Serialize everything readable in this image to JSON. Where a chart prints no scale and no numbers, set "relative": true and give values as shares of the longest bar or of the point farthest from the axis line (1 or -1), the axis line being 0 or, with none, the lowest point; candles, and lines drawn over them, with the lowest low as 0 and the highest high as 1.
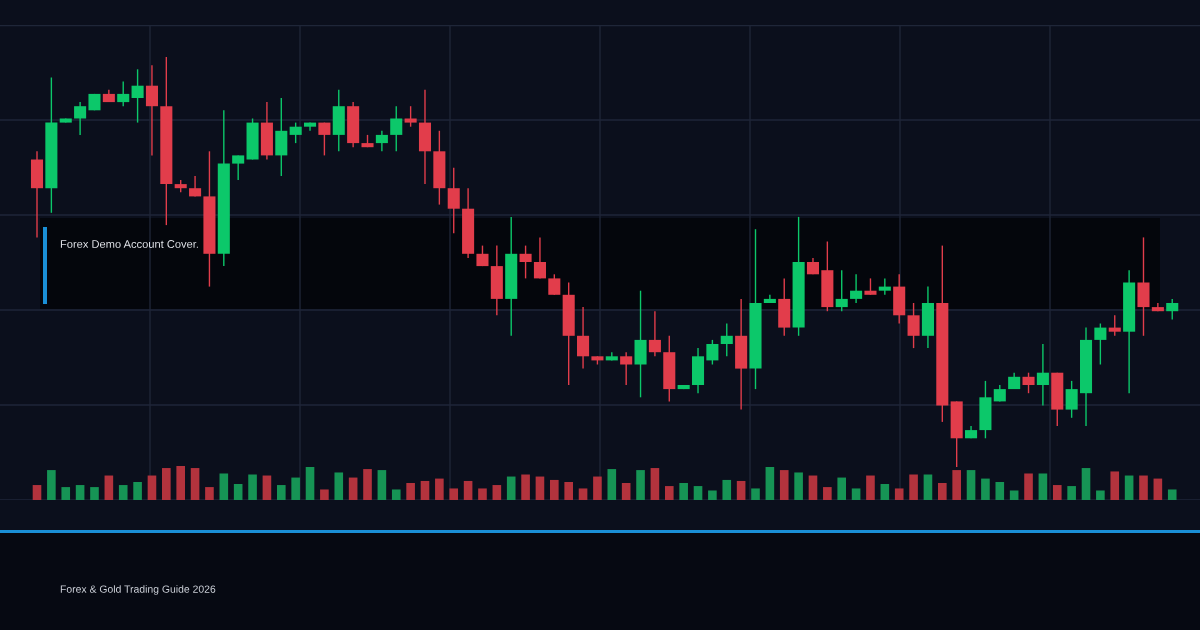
{
  "chart_data": [
    {
      "type": "candlestick",
      "relative": true,
      "grid": true,
      "tick_labels": false,
      "annotations": [
        "Forex Demo Account Cover.",
        "Forex & Gold Trading Guide 2026"
      ],
      "categories": [
        null,
        null,
        null,
        null,
        null,
        null,
        null,
        null,
        null,
        null,
        null,
        null,
        null,
        null,
        null,
        null,
        null,
        null,
        null,
        null,
        null,
        null,
        null,
        null,
        null,
        null,
        null,
        null,
        null,
        null,
        null,
        null,
        null,
        null,
        null,
        null,
        null,
        null,
        null,
        null,
        null,
        null,
        null,
        null,
        null,
        null,
        null,
        null,
        null,
        null,
        null,
        null,
        null,
        null,
        null,
        null,
        null,
        null,
        null,
        null,
        null,
        null,
        null,
        null,
        null,
        null,
        null,
        null,
        null,
        null,
        null,
        null,
        null,
        null,
        null,
        null,
        null,
        null,
        null,
        null
      ],
      "ohlc": [
        [
          0.75,
          0.77,
          0.56,
          0.68
        ],
        [
          0.68,
          0.95,
          0.62,
          0.84
        ],
        [
          0.84,
          0.85,
          0.84,
          0.85
        ],
        [
          0.85,
          0.89,
          0.81,
          0.88
        ],
        [
          0.87,
          0.91,
          0.87,
          0.91
        ],
        [
          0.91,
          0.92,
          0.89,
          0.89
        ],
        [
          0.89,
          0.94,
          0.88,
          0.91
        ],
        [
          0.9,
          0.97,
          0.84,
          0.93
        ],
        [
          0.93,
          0.98,
          0.76,
          0.88
        ],
        [
          0.88,
          1.0,
          0.59,
          0.69
        ],
        [
          0.69,
          0.7,
          0.67,
          0.68
        ],
        [
          0.68,
          0.71,
          0.66,
          0.66
        ],
        [
          0.66,
          0.77,
          0.44,
          0.52
        ],
        [
          0.52,
          0.87,
          0.49,
          0.74
        ],
        [
          0.74,
          0.76,
          0.7,
          0.76
        ],
        [
          0.75,
          0.85,
          0.75,
          0.84
        ],
        [
          0.84,
          0.89,
          0.75,
          0.76
        ],
        [
          0.76,
          0.9,
          0.71,
          0.82
        ],
        [
          0.81,
          0.84,
          0.79,
          0.83
        ],
        [
          0.83,
          0.84,
          0.82,
          0.84
        ],
        [
          0.84,
          0.84,
          0.76,
          0.81
        ],
        [
          0.81,
          0.92,
          0.77,
          0.88
        ],
        [
          0.88,
          0.89,
          0.78,
          0.79
        ],
        [
          0.79,
          0.81,
          0.78,
          0.78
        ],
        [
          0.79,
          0.82,
          0.77,
          0.81
        ],
        [
          0.81,
          0.88,
          0.77,
          0.85
        ],
        [
          0.85,
          0.88,
          0.83,
          0.84
        ],
        [
          0.84,
          0.92,
          0.69,
          0.77
        ],
        [
          0.77,
          0.82,
          0.64,
          0.68
        ],
        [
          0.68,
          0.73,
          0.57,
          0.63
        ],
        [
          0.63,
          0.68,
          0.51,
          0.52
        ],
        [
          0.52,
          0.54,
          0.49,
          0.49
        ],
        [
          0.49,
          0.54,
          0.37,
          0.41
        ],
        [
          0.41,
          0.61,
          0.32,
          0.52
        ],
        [
          0.52,
          0.54,
          0.46,
          0.5
        ],
        [
          0.5,
          0.56,
          0.46,
          0.46
        ],
        [
          0.46,
          0.47,
          0.42,
          0.42
        ],
        [
          0.42,
          0.45,
          0.2,
          0.32
        ],
        [
          0.32,
          0.39,
          0.24,
          0.27
        ],
        [
          0.27,
          0.27,
          0.25,
          0.26
        ],
        [
          0.26,
          0.28,
          0.26,
          0.27
        ],
        [
          0.27,
          0.28,
          0.2,
          0.25
        ],
        [
          0.25,
          0.43,
          0.17,
          0.31
        ],
        [
          0.31,
          0.38,
          0.27,
          0.28
        ],
        [
          0.28,
          0.32,
          0.16,
          0.19
        ],
        [
          0.19,
          0.2,
          0.19,
          0.2
        ],
        [
          0.2,
          0.29,
          0.18,
          0.27
        ],
        [
          0.26,
          0.31,
          0.25,
          0.3
        ],
        [
          0.3,
          0.35,
          0.27,
          0.32
        ],
        [
          0.32,
          0.41,
          0.14,
          0.24
        ],
        [
          0.24,
          0.58,
          0.19,
          0.4
        ],
        [
          0.4,
          0.42,
          0.4,
          0.41
        ],
        [
          0.41,
          0.46,
          0.32,
          0.34
        ],
        [
          0.34,
          0.61,
          0.32,
          0.5
        ],
        [
          0.5,
          0.51,
          0.47,
          0.47
        ],
        [
          0.48,
          0.55,
          0.38,
          0.39
        ],
        [
          0.39,
          0.48,
          0.38,
          0.41
        ],
        [
          0.41,
          0.47,
          0.4,
          0.43
        ],
        [
          0.43,
          0.46,
          0.42,
          0.42
        ],
        [
          0.43,
          0.46,
          0.42,
          0.44
        ],
        [
          0.44,
          0.47,
          0.35,
          0.37
        ],
        [
          0.37,
          0.4,
          0.29,
          0.32
        ],
        [
          0.32,
          0.44,
          0.29,
          0.4
        ],
        [
          0.4,
          0.54,
          0.11,
          0.15
        ],
        [
          0.16,
          0.16,
          0.0,
          0.07
        ],
        [
          0.07,
          0.1,
          0.07,
          0.09
        ],
        [
          0.09,
          0.21,
          0.07,
          0.17
        ],
        [
          0.16,
          0.2,
          0.16,
          0.19
        ],
        [
          0.19,
          0.23,
          0.19,
          0.22
        ],
        [
          0.22,
          0.23,
          0.18,
          0.2
        ],
        [
          0.2,
          0.3,
          0.15,
          0.23
        ],
        [
          0.23,
          0.23,
          0.1,
          0.14
        ],
        [
          0.14,
          0.21,
          0.12,
          0.19
        ],
        [
          0.18,
          0.34,
          0.1,
          0.31
        ],
        [
          0.31,
          0.35,
          0.25,
          0.34
        ],
        [
          0.34,
          0.37,
          0.32,
          0.33
        ],
        [
          0.33,
          0.48,
          0.18,
          0.45
        ],
        [
          0.45,
          0.56,
          0.32,
          0.39
        ],
        [
          0.39,
          0.4,
          0.38,
          0.38
        ],
        [
          0.38,
          0.41,
          0.36,
          0.4
        ]
      ],
      "colors": [
        "#e23d4b",
        "#0cc86a",
        "#0cc86a",
        "#0cc86a",
        "#0cc86a",
        "#e23d4b",
        "#0cc86a",
        "#0cc86a",
        "#e23d4b",
        "#e23d4b",
        "#e23d4b",
        "#e23d4b",
        "#e23d4b",
        "#0cc86a",
        "#0cc86a",
        "#0cc86a",
        "#e23d4b",
        "#0cc86a",
        "#0cc86a",
        "#0cc86a",
        "#e23d4b",
        "#0cc86a",
        "#e23d4b",
        "#e23d4b",
        "#0cc86a",
        "#0cc86a",
        "#e23d4b",
        "#e23d4b",
        "#e23d4b",
        "#e23d4b",
        "#e23d4b",
        "#e23d4b",
        "#e23d4b",
        "#0cc86a",
        "#e23d4b",
        "#e23d4b",
        "#e23d4b",
        "#e23d4b",
        "#e23d4b",
        "#e23d4b",
        "#0cc86a",
        "#e23d4b",
        "#0cc86a",
        "#e23d4b",
        "#e23d4b",
        "#0cc86a",
        "#0cc86a",
        "#0cc86a",
        "#0cc86a",
        "#e23d4b",
        "#0cc86a",
        "#0cc86a",
        "#e23d4b",
        "#0cc86a",
        "#e23d4b",
        "#e23d4b",
        "#0cc86a",
        "#0cc86a",
        "#e23d4b",
        "#0cc86a",
        "#e23d4b",
        "#e23d4b",
        "#0cc86a",
        "#e23d4b",
        "#e23d4b",
        "#0cc86a",
        "#0cc86a",
        "#0cc86a",
        "#0cc86a",
        "#e23d4b",
        "#0cc86a",
        "#e23d4b",
        "#0cc86a",
        "#0cc86a",
        "#0cc86a",
        "#e23d4b",
        "#0cc86a",
        "#e23d4b",
        "#e23d4b",
        "#0cc86a"
      ]
    },
    {
      "type": "bar",
      "relative": true,
      "tick_labels": false,
      "categories": [
        null,
        null,
        null,
        null,
        null,
        null,
        null,
        null,
        null,
        null,
        null,
        null,
        null,
        null,
        null,
        null,
        null,
        null,
        null,
        null,
        null,
        null,
        null,
        null,
        null,
        null,
        null,
        null,
        null,
        null,
        null,
        null,
        null,
        null,
        null,
        null,
        null,
        null,
        null,
        null,
        null,
        null,
        null,
        null,
        null,
        null,
        null,
        null,
        null,
        null,
        null,
        null,
        null,
        null,
        null,
        null,
        null,
        null,
        null,
        null,
        null,
        null,
        null,
        null,
        null,
        null,
        null,
        null,
        null,
        null,
        null,
        null,
        null,
        null,
        null,
        null,
        null,
        null,
        null,
        null
      ],
      "values": [
        0.44,
        0.88,
        0.38,
        0.44,
        0.38,
        0.72,
        0.44,
        0.53,
        0.72,
        0.94,
        1.0,
        0.94,
        0.38,
        0.78,
        0.47,
        0.75,
        0.72,
        0.44,
        0.66,
        0.97,
        0.31,
        0.81,
        0.66,
        0.91,
        0.88,
        0.31,
        0.5,
        0.56,
        0.63,
        0.34,
        0.56,
        0.34,
        0.44,
        0.69,
        0.75,
        0.69,
        0.59,
        0.53,
        0.34,
        0.69,
        0.91,
        0.5,
        0.88,
        0.94,
        0.41,
        0.5,
        0.41,
        0.28,
        0.59,
        0.56,
        0.34,
        0.97,
        0.88,
        0.81,
        0.72,
        0.38,
        0.66,
        0.34,
        0.72,
        0.47,
        0.34,
        0.75,
        0.75,
        0.5,
        0.88,
        0.88,
        0.63,
        0.53,
        0.28,
        0.78,
        0.78,
        0.44,
        0.41,
        0.94,
        0.28,
        0.84,
        0.72,
        0.72,
        0.63,
        0.31
      ],
      "colors": [
        "#b3333d",
        "#169455",
        "#169455",
        "#169455",
        "#169455",
        "#b3333d",
        "#169455",
        "#169455",
        "#b3333d",
        "#b3333d",
        "#b3333d",
        "#b3333d",
        "#b3333d",
        "#169455",
        "#169455",
        "#169455",
        "#b3333d",
        "#169455",
        "#169455",
        "#169455",
        "#b3333d",
        "#169455",
        "#b3333d",
        "#b3333d",
        "#169455",
        "#169455",
        "#b3333d",
        "#b3333d",
        "#b3333d",
        "#b3333d",
        "#b3333d",
        "#b3333d",
        "#b3333d",
        "#169455",
        "#b3333d",
        "#b3333d",
        "#b3333d",
        "#b3333d",
        "#b3333d",
        "#b3333d",
        "#169455",
        "#b3333d",
        "#169455",
        "#b3333d",
        "#b3333d",
        "#169455",
        "#169455",
        "#169455",
        "#169455",
        "#b3333d",
        "#169455",
        "#169455",
        "#b3333d",
        "#169455",
        "#b3333d",
        "#b3333d",
        "#169455",
        "#169455",
        "#b3333d",
        "#169455",
        "#b3333d",
        "#b3333d",
        "#169455",
        "#b3333d",
        "#b3333d",
        "#169455",
        "#169455",
        "#169455",
        "#169455",
        "#b3333d",
        "#169455",
        "#b3333d",
        "#169455",
        "#169455",
        "#169455",
        "#b3333d",
        "#169455",
        "#b3333d",
        "#b3333d",
        "#169455"
      ]
    }
  ]
}
